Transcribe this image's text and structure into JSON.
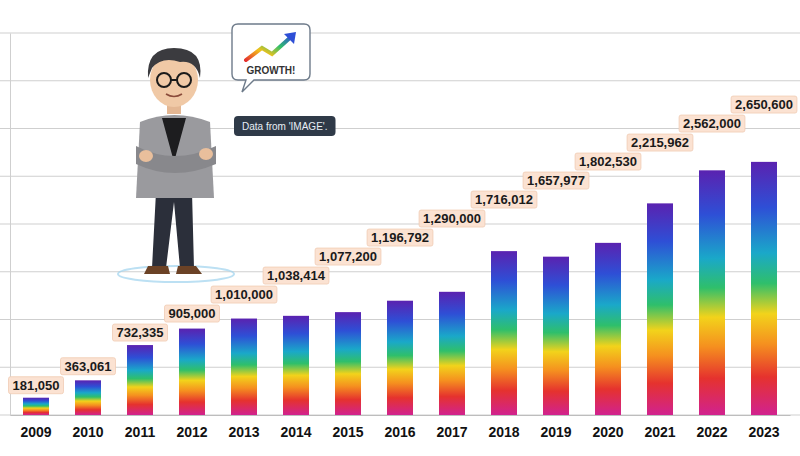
{
  "chart_data": {
    "type": "bar",
    "categories": [
      "2009",
      "2010",
      "2011",
      "2012",
      "2013",
      "2014",
      "2015",
      "2016",
      "2017",
      "2018",
      "2019",
      "2020",
      "2021",
      "2022",
      "2023"
    ],
    "values": [
      181050,
      363061,
      732335,
      905000,
      1010000,
      1038414,
      1077200,
      1196792,
      1290000,
      1716012,
      1657977,
      1802530,
      2215962,
      2562000,
      2650600
    ],
    "value_labels": [
      "181,050",
      "363,061",
      "732,335",
      "905,000",
      "1,010,000",
      "1,038,414",
      "1,077,200",
      "1,196,792",
      "1,290,000",
      "1,716,012",
      "1,657,977",
      "1,802,530",
      "2,215,962",
      "2,562,000",
      "2,650,600"
    ],
    "ylim": [
      0,
      4000000
    ],
    "yticks": [
      0,
      500000,
      1000000,
      1500000,
      2000000,
      2500000,
      3000000,
      3500000,
      4000000
    ],
    "grid": true,
    "data_labels": true,
    "tick_labels": "x",
    "annotations": [
      "GROWTH!",
      "Data from 'IMAGE'."
    ]
  }
}
